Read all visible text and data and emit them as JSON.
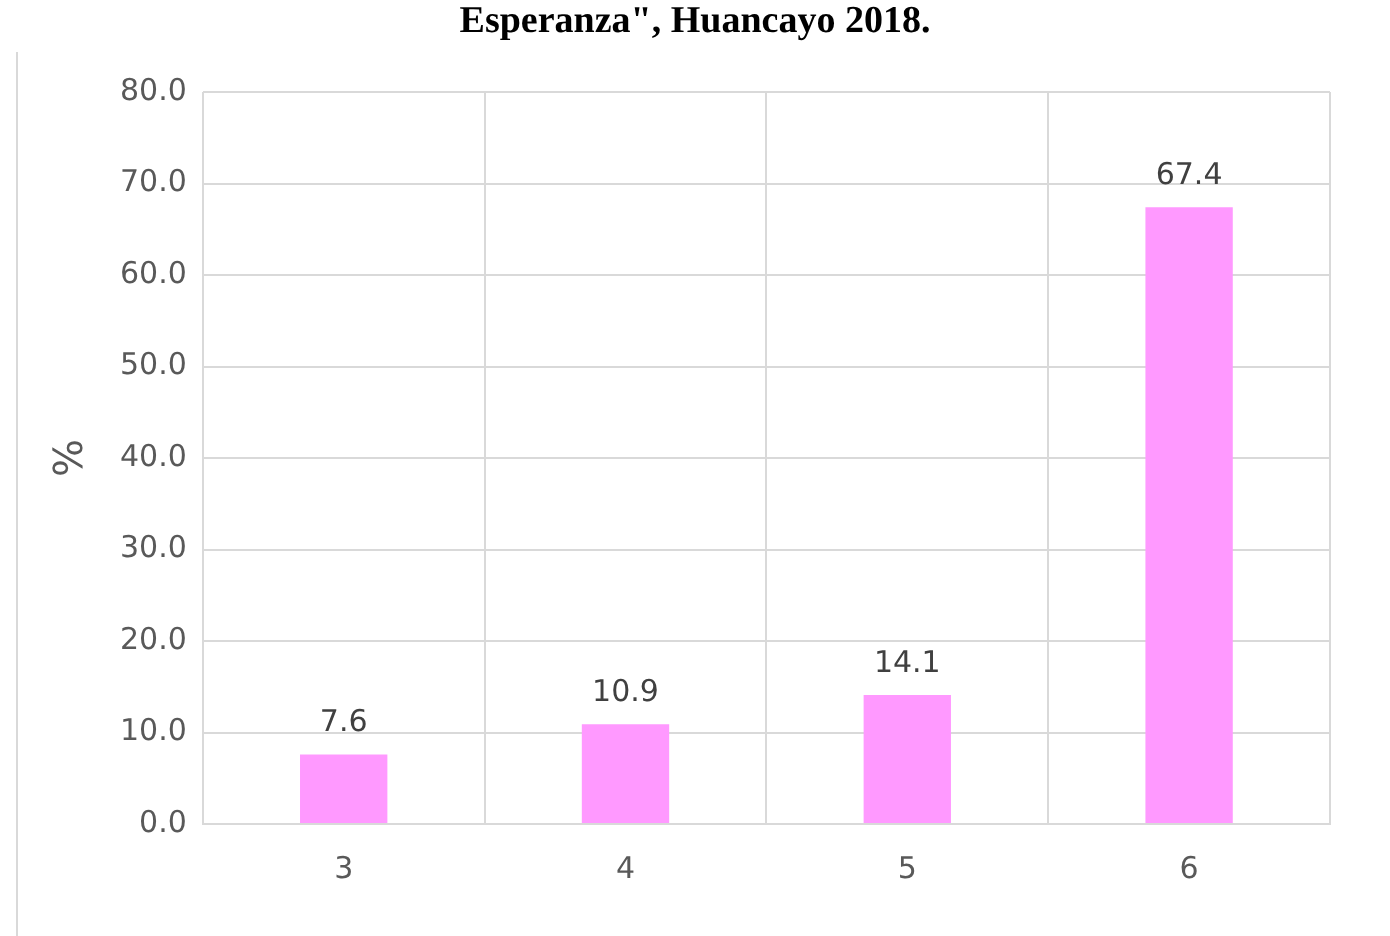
{
  "chart_data": {
    "type": "bar",
    "title": "Esperanza\", Huancayo 2018.",
    "ylabel": "%",
    "categories": [
      "3",
      "4",
      "5",
      "6"
    ],
    "values": [
      7.6,
      10.9,
      14.1,
      67.4
    ],
    "color": "#ff99ff",
    "ylim": [
      0,
      80
    ],
    "yticks": [
      {
        "value": 0,
        "label": "0.0"
      },
      {
        "value": 10,
        "label": "10.0"
      },
      {
        "value": 20,
        "label": "20.0"
      },
      {
        "value": 30,
        "label": "30.0"
      },
      {
        "value": 40,
        "label": "40.0"
      },
      {
        "value": 50,
        "label": "50.0"
      },
      {
        "value": 60,
        "label": "60.0"
      },
      {
        "value": 70,
        "label": "70.0"
      },
      {
        "value": 80,
        "label": "80.0"
      }
    ],
    "grid": true,
    "data_labels": true
  }
}
